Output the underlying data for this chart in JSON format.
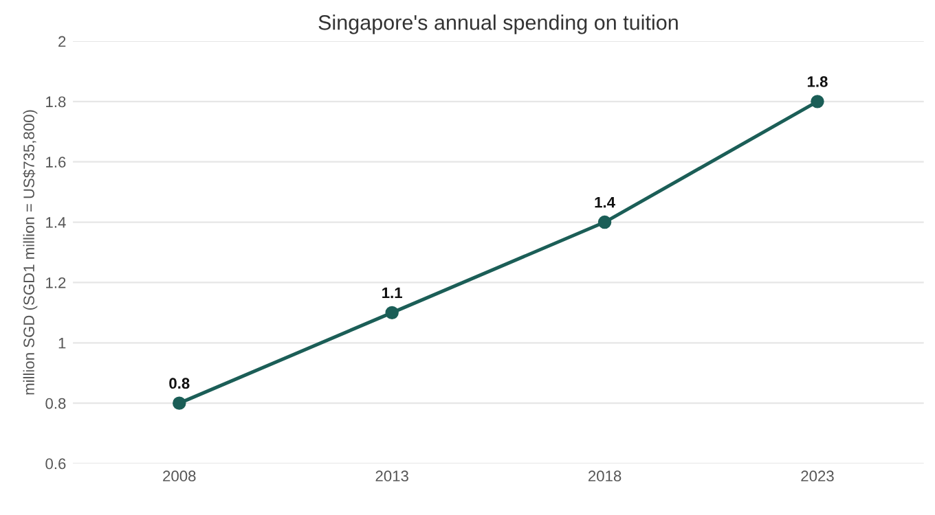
{
  "chart_data": {
    "type": "line",
    "title": "Singapore's annual spending on tuition",
    "ylabel": "million SGD (SGD1 million = US$735,800)",
    "categories": [
      "2008",
      "2013",
      "2018",
      "2023"
    ],
    "series": [
      {
        "color": "#1b5e57",
        "values": [
          0.8,
          1.1,
          1.4,
          1.8
        ]
      }
    ],
    "ylim": [
      0.6,
      2
    ],
    "yticks": [
      0.6,
      0.8,
      1,
      1.2,
      1.4,
      1.6,
      1.8,
      2
    ],
    "grid": "y",
    "marker": "circle",
    "line_style": "solid",
    "data_labels": true
  }
}
